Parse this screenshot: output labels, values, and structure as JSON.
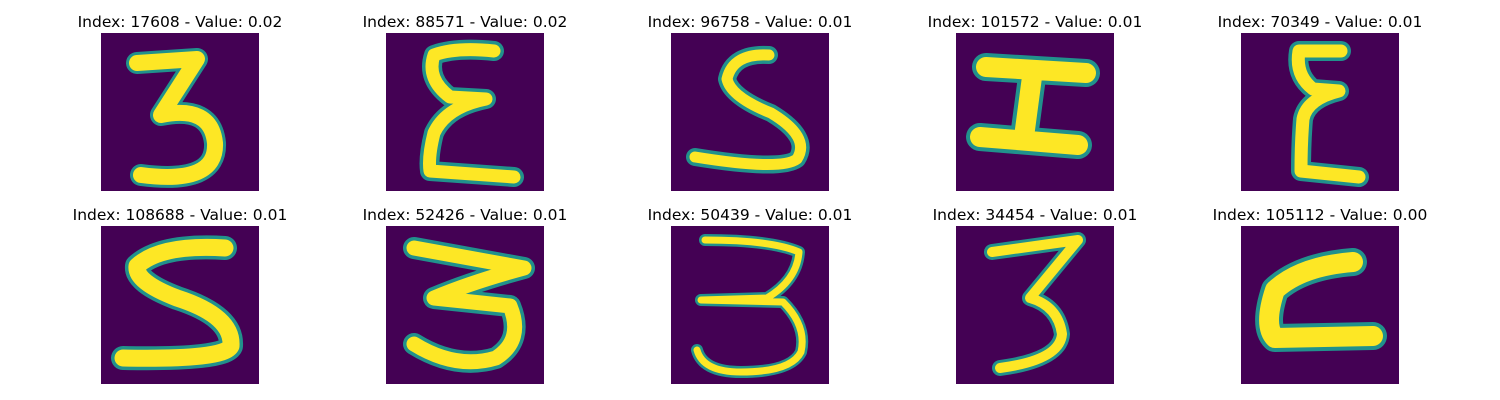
{
  "colors": {
    "background": "#440154",
    "edge": "#21918c",
    "foreground": "#fde725"
  },
  "panels": [
    {
      "title": "Index: 17608 - Value: 0.02",
      "glyph": "3"
    },
    {
      "title": "Index: 88571 - Value: 0.02",
      "glyph": "E"
    },
    {
      "title": "Index: 96758 - Value: 0.01",
      "glyph": "S"
    },
    {
      "title": "Index: 101572 - Value: 0.01",
      "glyph": "I"
    },
    {
      "title": "Index: 70349 - Value: 0.01",
      "glyph": "E"
    },
    {
      "title": "Index: 108688 - Value: 0.01",
      "glyph": "S"
    },
    {
      "title": "Index: 52426 - Value: 0.01",
      "glyph": "3"
    },
    {
      "title": "Index: 50439 - Value: 0.01",
      "glyph": "3"
    },
    {
      "title": "Index: 34454 - Value: 0.01",
      "glyph": "3"
    },
    {
      "title": "Index: 105112 - Value: 0.00",
      "glyph": "C"
    }
  ]
}
